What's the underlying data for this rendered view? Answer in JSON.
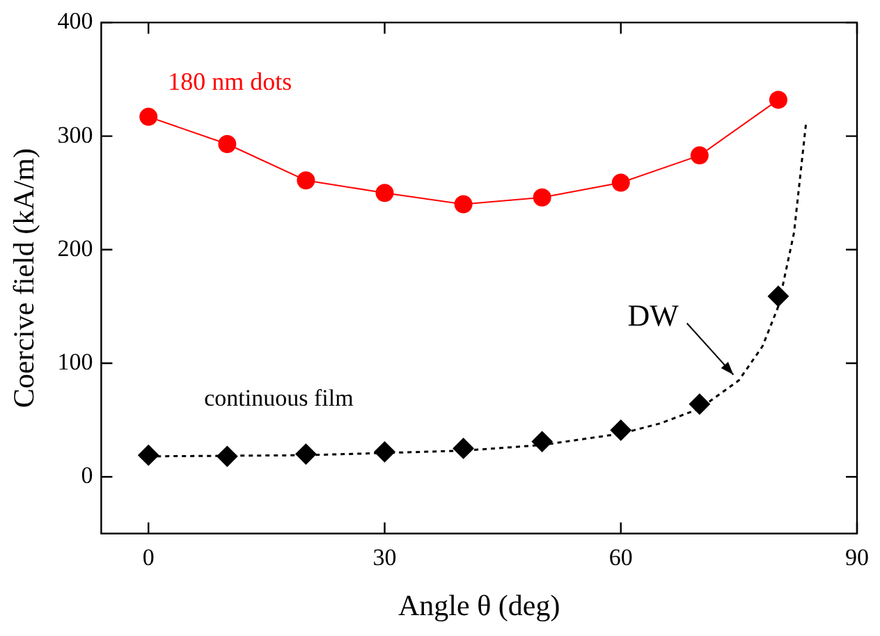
{
  "chart_data": {
    "type": "line",
    "xlabel": "Angle θ (deg)",
    "ylabel": "Coercive field (kA/m)",
    "xlim": [
      -6,
      90
    ],
    "xticks": [
      0,
      30,
      60,
      90
    ],
    "ylim": [
      -50,
      400
    ],
    "yticks": [
      0,
      100,
      200,
      300,
      400
    ],
    "grid": false,
    "legend": false,
    "series": [
      {
        "name": "180 nm dots",
        "color": "#ff0000",
        "marker": "circle",
        "line_style": "solid",
        "x": [
          0,
          10,
          20,
          30,
          40,
          50,
          60,
          70,
          80
        ],
        "values": [
          317,
          293,
          261,
          250,
          240,
          246,
          259,
          283,
          332
        ]
      },
      {
        "name": "continuous film",
        "color": "#000000",
        "type": "scatter",
        "marker": "diamond",
        "x": [
          0,
          10,
          20,
          30,
          40,
          50,
          60,
          70,
          80
        ],
        "values": [
          19,
          18,
          20,
          22,
          25,
          31,
          41,
          64,
          159
        ]
      },
      {
        "name": "DW",
        "color": "#000000",
        "marker": "none",
        "line_style": "dotted",
        "x": [
          0,
          20,
          40,
          50,
          60,
          65,
          70,
          75,
          78,
          80,
          82,
          83.5
        ],
        "values": [
          18,
          19,
          23,
          28,
          38,
          47,
          60,
          85,
          115,
          150,
          215,
          310
        ]
      }
    ]
  }
}
